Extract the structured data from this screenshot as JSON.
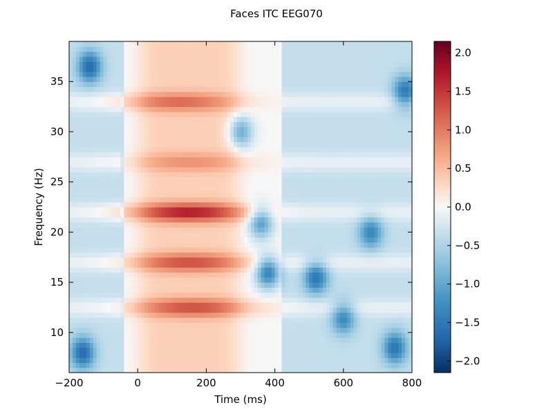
{
  "chart_data": {
    "type": "heatmap",
    "title": "Faces ITC EEG070",
    "xlabel": "Time (ms)",
    "ylabel": "Frequency (Hz)",
    "xlim": [
      -200,
      800
    ],
    "ylim": [
      6,
      39
    ],
    "x_ticks": [
      -200,
      0,
      200,
      400,
      600,
      800
    ],
    "x_tick_labels": [
      "−200",
      "0",
      "200",
      "400",
      "600",
      "800"
    ],
    "y_ticks": [
      10,
      15,
      20,
      25,
      30,
      35
    ],
    "y_tick_labels": [
      "10",
      "15",
      "20",
      "25",
      "30",
      "35"
    ],
    "colorbar": {
      "colormap": "RdBu_r",
      "vmin": -2.15,
      "vmax": 2.15,
      "ticks": [
        2.0,
        1.5,
        1.0,
        0.5,
        0.0,
        -0.5,
        -1.0,
        -1.5,
        -2.0
      ],
      "tick_labels": [
        "2.0",
        "1.5",
        "1.0",
        "0.5",
        "0.0",
        "−0.5",
        "−1.0",
        "−1.5",
        "−2.0"
      ]
    },
    "bands": [
      {
        "freq": 22,
        "peak_time": 150,
        "peak_value": 1.4
      },
      {
        "freq": 12.5,
        "peak_time": 160,
        "peak_value": 1.0
      },
      {
        "freq": 17,
        "peak_time": 150,
        "peak_value": 1.0
      },
      {
        "freq": 33,
        "peak_time": 120,
        "peak_value": 0.8
      },
      {
        "freq": 27,
        "peak_time": 150,
        "peak_value": 0.5
      }
    ],
    "blobs": [
      {
        "time": -160,
        "freq": 8,
        "value": -1.3
      },
      {
        "time": -140,
        "freq": 36.5,
        "value": -1.3
      },
      {
        "time": 380,
        "freq": 16,
        "value": -1.4
      },
      {
        "time": 520,
        "freq": 15.5,
        "value": -1.2
      },
      {
        "time": 600,
        "freq": 11.5,
        "value": -1.0
      },
      {
        "time": 750,
        "freq": 8.5,
        "value": -1.2
      },
      {
        "time": 780,
        "freq": 34,
        "value": -1.2
      },
      {
        "time": 300,
        "freq": 30,
        "value": -1.0
      },
      {
        "time": 680,
        "freq": 20,
        "value": -1.0
      },
      {
        "time": 360,
        "freq": 21,
        "value": -1.1
      }
    ],
    "grid": false
  }
}
